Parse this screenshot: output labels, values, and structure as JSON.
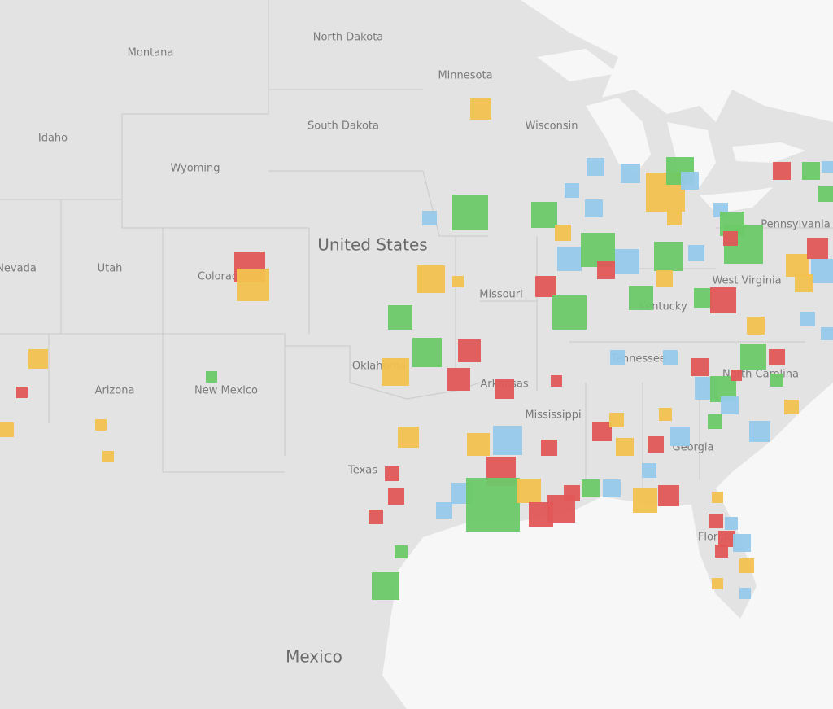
{
  "map": {
    "country_labels": [
      "United States",
      "Mexico"
    ],
    "state_labels": [
      "Montana",
      "North Dakota",
      "Minnesota",
      "South Dakota",
      "Wisconsin",
      "Idaho",
      "Wyoming",
      "Utah",
      "Nevada",
      "Colorado",
      "Missouri",
      "Arizona",
      "New Mexico",
      "Oklahoma",
      "Arkansas",
      "Texas",
      "Mississippi",
      "Tennessee",
      "Kentucky",
      "West Virginia",
      "Pennsylvania",
      "Georgia",
      "North Carolina",
      "Florida"
    ]
  }
}
